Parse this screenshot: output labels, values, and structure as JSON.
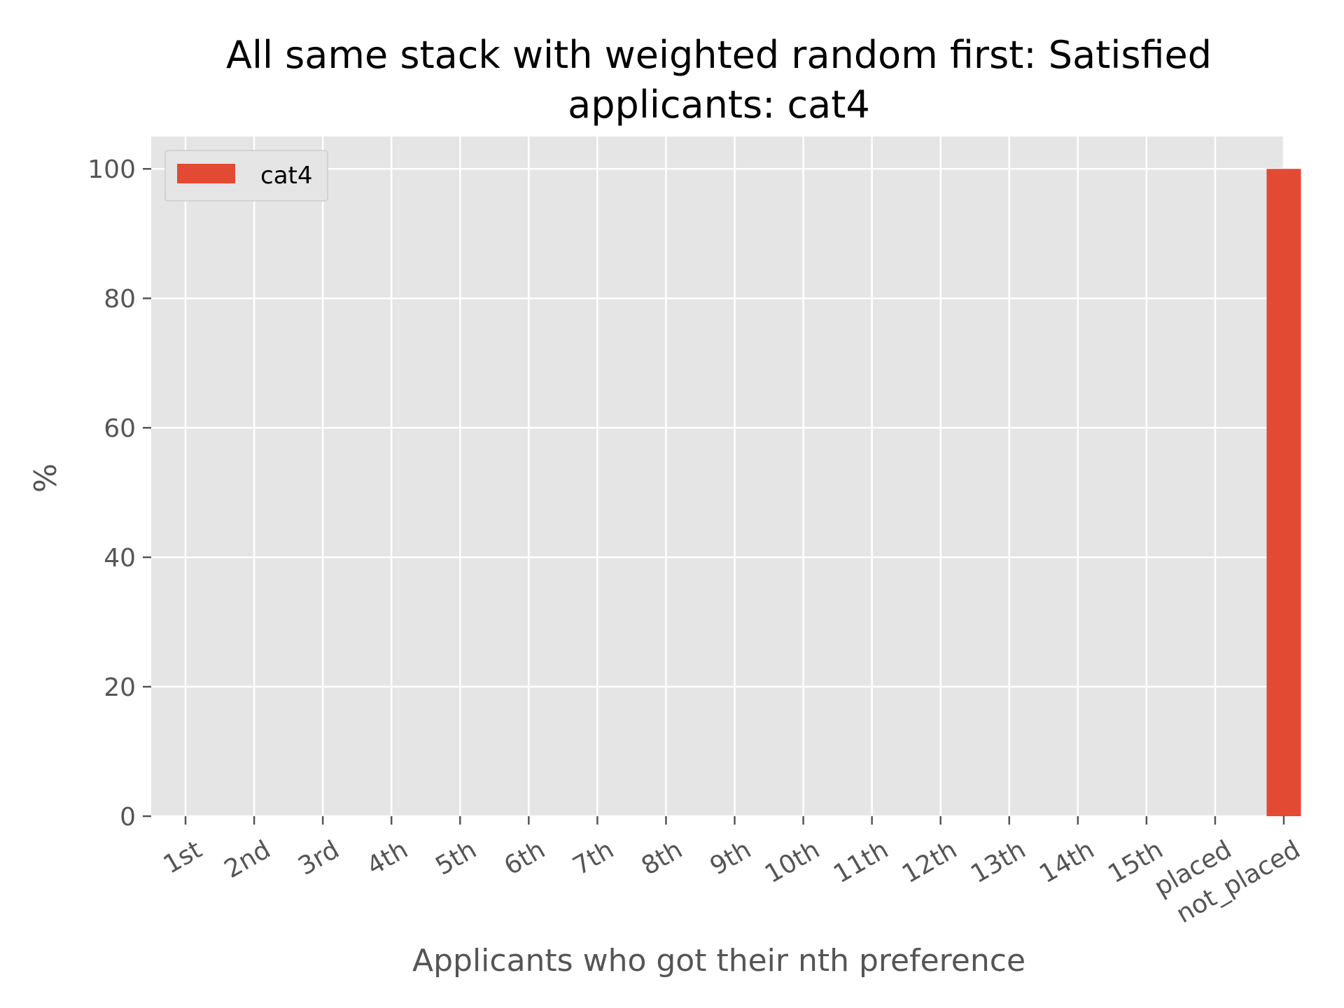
{
  "chart_data": {
    "type": "bar",
    "title_lines": [
      "All same stack with weighted random first: Satisfied",
      "applicants: cat4"
    ],
    "xlabel": "Applicants who got their nth preference",
    "ylabel": "%",
    "categories": [
      "1st",
      "2nd",
      "3rd",
      "4th",
      "5th",
      "6th",
      "7th",
      "8th",
      "9th",
      "10th",
      "11th",
      "12th",
      "13th",
      "14th",
      "15th",
      "placed",
      "not_placed"
    ],
    "series": [
      {
        "name": "cat4",
        "color": "#E24A33",
        "values": [
          0,
          0,
          0,
          0,
          0,
          0,
          0,
          0,
          0,
          0,
          0,
          0,
          0,
          0,
          0,
          0,
          100
        ]
      }
    ],
    "ylim": [
      0,
      105
    ],
    "yticks": [
      0,
      20,
      40,
      60,
      80,
      100
    ],
    "grid": true,
    "legend_position": "top-left",
    "background_color": "#E5E5E5",
    "grid_color": "#FFFFFF"
  }
}
